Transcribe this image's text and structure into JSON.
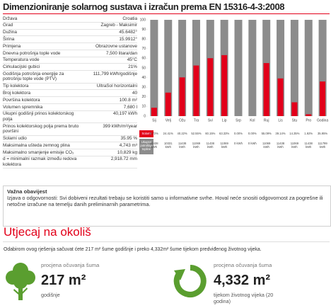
{
  "header": {
    "title": "Dimenzioniranje solarnog sustava i izračun prema EN 15316-4-3:2008"
  },
  "parameters": [
    [
      "Država",
      "Croatia"
    ],
    [
      "Grad",
      "Zagreb - Maksimir"
    ],
    [
      "Dužina",
      "45.6482°"
    ],
    [
      "Širina",
      "15.9912°"
    ],
    [
      "Primjena",
      "Obrazovne ustanove"
    ],
    [
      "Dnevna potrošnja tople vode",
      "7,500 litara/dan"
    ],
    [
      "Temperatura vode",
      "45°C"
    ],
    [
      "Cirkulacijski gubici",
      "21%"
    ],
    [
      "Godišnja potrošnja energije za potrošnju tople vode (PTV)",
      "111,799 kWh/godišnje"
    ],
    [
      "Tip kolektora",
      "UltraSol horizontalni"
    ],
    [
      "Broj kolektora",
      "40"
    ],
    [
      "Površina kolektora",
      "100.8 m²"
    ],
    [
      "Volumen spremnika",
      "7,680 l"
    ],
    [
      "Ukupni godišnji prinos kolektorskog polja",
      "40,197 kWh"
    ],
    [
      "Prinos kolektorskog polja prema bruto površini",
      "399 kWh/m²/year"
    ],
    [
      "Solarni udio",
      "35.95 %"
    ],
    [
      "Maksimalna ušteda zemnog plina",
      "4,743 m³"
    ],
    [
      "Maksimalno smanjenje emisije CO₂",
      "10,829 kg"
    ],
    [
      "d = minimalni razmak između redova kolektora",
      "2,918.72 mm"
    ]
  ],
  "chart_data": {
    "type": "bar",
    "categories": [
      "Sij",
      "Velj",
      "Ožu",
      "Tra",
      "Svi",
      "Lip",
      "Srp",
      "Kol",
      "Ruj",
      "Lis",
      "Stu",
      "Pro",
      "Godina"
    ],
    "values": [
      8.72,
      24.41,
      40.22,
      52.55,
      60.15,
      63.33,
      0,
      0,
      55.09,
      39.14,
      14.35,
      1.92,
      35.95
    ],
    "value_labels": [
      "8.72%",
      "24.41%",
      "40.22%",
      "52.55%",
      "60.15%",
      "63.33%",
      "0.00%",
      "0.00%",
      "55.09%",
      "39.14%",
      "14.35%",
      "1.92%",
      "35.95%"
    ],
    "color": "#e2001a",
    "background_color": "#8c8c8c",
    "ylim": [
      0,
      100
    ],
    "yticks": [
      0,
      10,
      20,
      30,
      40,
      50,
      60,
      70,
      80,
      90,
      100
    ],
    "series_label": "Solarni udio",
    "consumption_label": "Ukupna potrošnja topline",
    "consumption": [
      "11438 kWh",
      "10331 kWh",
      "11438 kWh",
      "11069 kWh",
      "11438 kWh",
      "11069 kWh",
      "0 kWh",
      "0 kWh",
      "11069 kWh",
      "11438 kWh",
      "11069 kWh",
      "11438 kWh",
      "111799 kWh"
    ]
  },
  "notice": {
    "title": "Važna obavijest",
    "text": "Izjava o odgovornosti: Svi dobiveni rezultati trebaju se koristiti samo u informativne svrhe. Hoval neće snositi odgovornost za pogrešne ili netočne izračune na temelju danih preliminarnih parametrima."
  },
  "environment": {
    "title": "Utjecaj na okoliš",
    "intro": "Odabirom ovog rješenja sačuvat ćete 217 m² šume godišnje i preko 4,332m² šume tijekom predviđenog životnog vijeka.",
    "stats": [
      {
        "caption": "procjena očuvanja šuma",
        "value": "217 m²",
        "note": "godišnje"
      },
      {
        "caption": "procjena očuvanja šuma",
        "value": "4,332 m²",
        "note": "tijekom životnog vijeka (20 godina)"
      }
    ]
  }
}
